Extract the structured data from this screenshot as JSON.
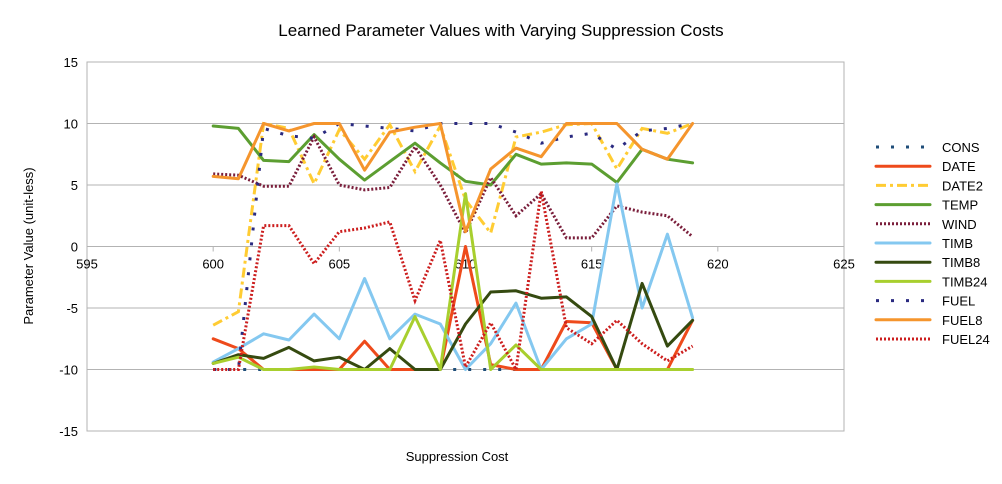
{
  "chart_data": {
    "type": "line",
    "title": "Learned Parameter Values with Varying Suppression Costs",
    "xlabel": "Suppression Cost",
    "ylabel": "Parameter Value (unit-less)",
    "xlim": [
      595,
      625
    ],
    "ylim": [
      -15,
      15
    ],
    "xticks": [
      595,
      600,
      605,
      610,
      615,
      620,
      625
    ],
    "yticks": [
      -15,
      -10,
      -5,
      0,
      5,
      10,
      15
    ],
    "grid": "horizontal",
    "legend_position": "right",
    "x": [
      600,
      601,
      602,
      603,
      604,
      605,
      606,
      607,
      608,
      609,
      610,
      611,
      612,
      613,
      614,
      615,
      616,
      617,
      618,
      619
    ],
    "series": [
      {
        "name": "CONS",
        "color": "#1f4e79",
        "dash": "dotted-square",
        "values": [
          -10,
          -10,
          -10,
          -10,
          -10,
          -10,
          -10,
          -10,
          -10,
          -10,
          -10,
          -10,
          -10,
          -10,
          -10,
          -10,
          -10,
          -10,
          -10,
          -10
        ]
      },
      {
        "name": "DATE",
        "color": "#ee4a1b",
        "dash": "solid",
        "values": [
          -7.5,
          -8.3,
          -10,
          -10,
          -10,
          -10,
          -7.7,
          -10,
          -10,
          -10,
          0,
          -9.6,
          -10,
          -10,
          -6.1,
          -6.2,
          -10,
          -10,
          -10,
          -6
        ]
      },
      {
        "name": "DATE2",
        "color": "#ffcc33",
        "dash": "dashdot",
        "values": [
          -6.4,
          -5.3,
          10,
          9.6,
          5.1,
          9.5,
          7.1,
          9.9,
          6.1,
          9.8,
          3.8,
          1.1,
          8.9,
          9.3,
          9.9,
          10,
          6.3,
          9.6,
          9.2,
          10
        ]
      },
      {
        "name": "TEMP",
        "color": "#5c9e31",
        "dash": "solid",
        "values": [
          9.8,
          9.6,
          7,
          6.9,
          9.1,
          7.1,
          5.4,
          6.9,
          8.4,
          6.8,
          5.3,
          5,
          7.5,
          6.7,
          6.8,
          6.7,
          5.2,
          7.9,
          7.1,
          6.8
        ]
      },
      {
        "name": "WIND",
        "color": "#7a1e3b",
        "dash": "dotted",
        "values": [
          5.9,
          5.8,
          4.9,
          4.9,
          8.9,
          5,
          4.6,
          4.8,
          8.1,
          5,
          1.1,
          5.6,
          2.5,
          4.3,
          0.7,
          0.7,
          3.3,
          2.8,
          2.5,
          0.8
        ]
      },
      {
        "name": "TIMB",
        "color": "#84c8f0",
        "dash": "solid",
        "values": [
          -9.4,
          -8.3,
          -7.1,
          -7.6,
          -5.5,
          -7.5,
          -2.6,
          -7.5,
          -5.5,
          -6.3,
          -10,
          -7.9,
          -4.6,
          -10,
          -7.5,
          -6.3,
          5.1,
          -5,
          1,
          -5.8
        ]
      },
      {
        "name": "TIMB8",
        "color": "#354a10",
        "dash": "solid",
        "values": [
          -9.5,
          -8.8,
          -9.1,
          -8.2,
          -9.3,
          -9,
          -10,
          -8.3,
          -10,
          -10,
          -6.3,
          -3.7,
          -3.6,
          -4.2,
          -4.1,
          -5.7,
          -10,
          -3,
          -8.1,
          -6
        ]
      },
      {
        "name": "TIMB24",
        "color": "#a8cf2e",
        "dash": "solid",
        "values": [
          -9.5,
          -9,
          -10,
          -10,
          -9.8,
          -10,
          -10,
          -10,
          -5.7,
          -10,
          4.3,
          -10,
          -8,
          -10,
          -10,
          -10,
          -10,
          -10,
          -10,
          -10
        ]
      },
      {
        "name": "FUEL",
        "color": "#2a2a80",
        "dash": "dotted-square",
        "values": [
          -10,
          -10,
          9.6,
          9,
          8.8,
          10,
          9.8,
          9.6,
          9.4,
          10,
          10,
          10,
          9.3,
          8.4,
          8.9,
          9.2,
          7.9,
          9.4,
          9.6,
          10
        ]
      },
      {
        "name": "FUEL8",
        "color": "#f5952d",
        "dash": "solid",
        "values": [
          5.7,
          5.5,
          10,
          9.4,
          10,
          10,
          6.2,
          9.3,
          9.7,
          10,
          1.2,
          6.3,
          8,
          7.3,
          10,
          10,
          10,
          7.9,
          7.1,
          10
        ]
      },
      {
        "name": "FUEL24",
        "color": "#cc1e1e",
        "dash": "dotted",
        "values": [
          -10,
          -10,
          1.7,
          1.7,
          -1.4,
          1.2,
          1.5,
          2,
          -4.4,
          0.5,
          -9.8,
          -6.2,
          -10,
          4.5,
          -6.6,
          -7.9,
          -6,
          -7.9,
          -9.3,
          -8.1
        ]
      }
    ]
  }
}
